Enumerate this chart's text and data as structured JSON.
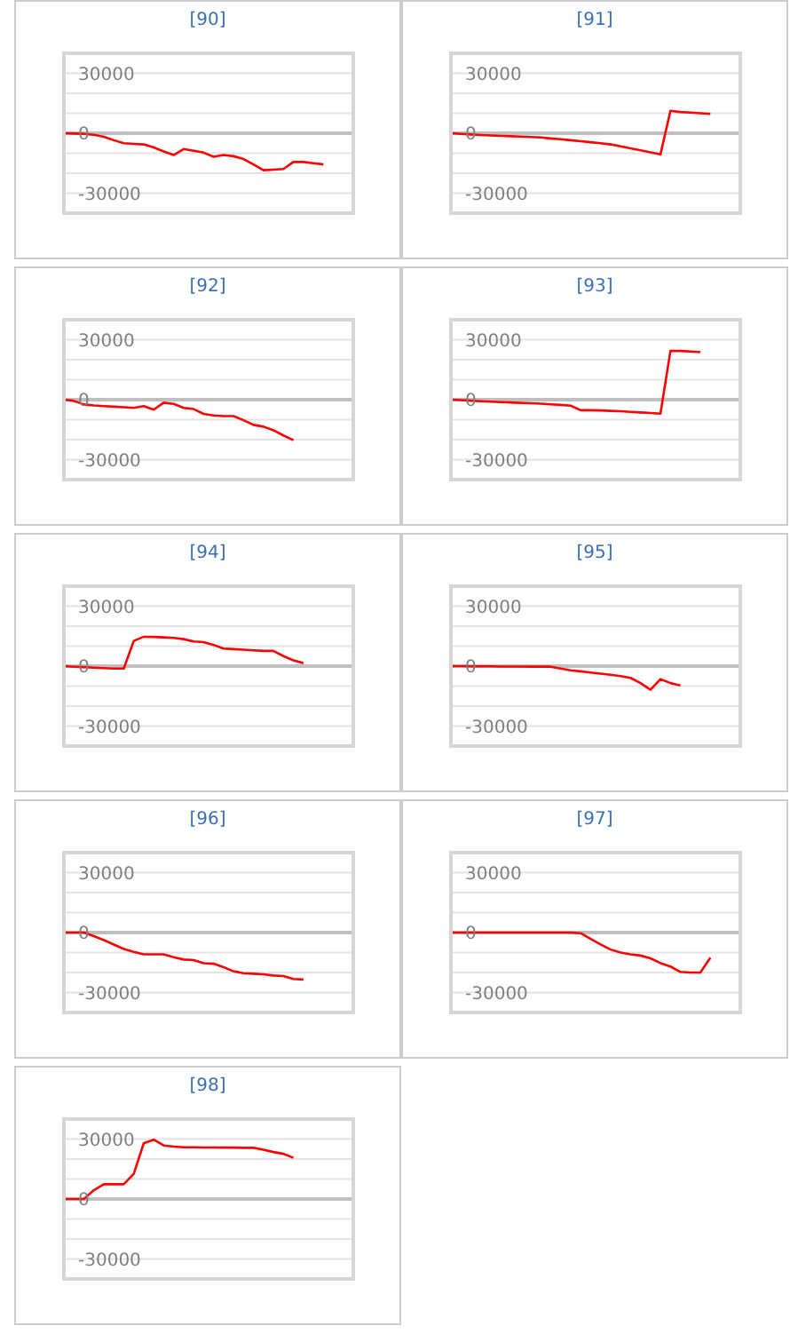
{
  "chart_data": [
    {
      "type": "line",
      "title": "[90]",
      "categories": [
        null,
        null,
        null,
        null,
        null,
        null,
        null,
        null,
        null,
        null,
        null,
        null,
        null,
        null,
        null,
        null,
        null,
        null,
        null,
        null,
        null,
        null,
        null,
        null,
        null,
        null,
        null,
        null,
        null,
        null
      ],
      "series": [
        {
          "color": "#ff0000",
          "values": [
            0,
            -150,
            -300,
            -750,
            -1800,
            -3500,
            -5000,
            -5300,
            -5600,
            -7100,
            -9100,
            -10900,
            -7900,
            -8800,
            -9700,
            -11800,
            -10900,
            -11500,
            -12900,
            -15600,
            -18500,
            -18200,
            -17900,
            -14400,
            -14400,
            -15000,
            -15600,
            null,
            null,
            null
          ]
        }
      ],
      "ylim": [
        -40000,
        40000
      ],
      "yticks": [
        {
          "value": 40000,
          "label": null
        },
        30000,
        {
          "value": 20000,
          "label": null
        },
        {
          "value": 10000,
          "label": null
        },
        0,
        {
          "value": -10000,
          "label": null
        },
        {
          "value": -20000,
          "label": null
        },
        -30000,
        {
          "value": -40000,
          "label": null
        }
      ],
      "grid": "y",
      "marker": "none",
      "tick_labels": "y",
      "ref_lines": [
        {
          "axis": "y",
          "value": 0,
          "color": "#bfbfbf"
        }
      ]
    },
    {
      "type": "line",
      "title": "[91]",
      "categories": [
        null,
        null,
        null,
        null,
        null,
        null,
        null,
        null,
        null,
        null,
        null,
        null,
        null,
        null,
        null,
        null,
        null,
        null,
        null,
        null,
        null,
        null,
        null,
        null,
        null,
        null,
        null,
        null,
        null,
        null
      ],
      "series": [
        {
          "color": "#ff0000",
          "values": [
            0,
            -300,
            -600,
            -900,
            -1100,
            -1300,
            -1500,
            -1700,
            -1900,
            -2100,
            -2600,
            -3000,
            -3500,
            -4000,
            -4500,
            -5000,
            -5600,
            -6600,
            -7600,
            -8600,
            -9600,
            -10600,
            11200,
            10600,
            10300,
            10000,
            9700,
            null,
            null,
            null
          ]
        }
      ],
      "ylim": [
        -40000,
        40000
      ],
      "yticks": [
        {
          "value": 40000,
          "label": null
        },
        30000,
        {
          "value": 20000,
          "label": null
        },
        {
          "value": 10000,
          "label": null
        },
        0,
        {
          "value": -10000,
          "label": null
        },
        {
          "value": -20000,
          "label": null
        },
        -30000,
        {
          "value": -40000,
          "label": null
        }
      ],
      "grid": "y",
      "marker": "none",
      "tick_labels": "y",
      "ref_lines": [
        {
          "axis": "y",
          "value": 0,
          "color": "#bfbfbf"
        }
      ]
    },
    {
      "type": "line",
      "title": "[92]",
      "categories": [
        null,
        null,
        null,
        null,
        null,
        null,
        null,
        null,
        null,
        null,
        null,
        null,
        null,
        null,
        null,
        null,
        null,
        null,
        null,
        null,
        null,
        null,
        null,
        null,
        null,
        null,
        null,
        null,
        null,
        null
      ],
      "series": [
        {
          "color": "#ff0000",
          "values": [
            0,
            -600,
            -2400,
            -2900,
            -3200,
            -3500,
            -3800,
            -4100,
            -3200,
            -5000,
            -1500,
            -2100,
            -4100,
            -4700,
            -7100,
            -7900,
            -8200,
            -8200,
            -10300,
            -12600,
            -13500,
            -15300,
            -17900,
            -20300,
            null,
            null,
            null,
            null,
            null,
            null
          ]
        }
      ],
      "ylim": [
        -40000,
        40000
      ],
      "yticks": [
        {
          "value": 40000,
          "label": null
        },
        30000,
        {
          "value": 20000,
          "label": null
        },
        {
          "value": 10000,
          "label": null
        },
        0,
        {
          "value": -10000,
          "label": null
        },
        {
          "value": -20000,
          "label": null
        },
        -30000,
        {
          "value": -40000,
          "label": null
        }
      ],
      "grid": "y",
      "marker": "none",
      "tick_labels": "y",
      "ref_lines": [
        {
          "axis": "y",
          "value": 0,
          "color": "#bfbfbf"
        }
      ]
    },
    {
      "type": "line",
      "title": "[93]",
      "categories": [
        null,
        null,
        null,
        null,
        null,
        null,
        null,
        null,
        null,
        null,
        null,
        null,
        null,
        null,
        null,
        null,
        null,
        null,
        null,
        null,
        null,
        null,
        null,
        null,
        null,
        null,
        null,
        null,
        null,
        null
      ],
      "series": [
        {
          "color": "#ff0000",
          "values": [
            0,
            -250,
            -500,
            -750,
            -1000,
            -1200,
            -1400,
            -1600,
            -1800,
            -2000,
            -2300,
            -2600,
            -3000,
            -5300,
            -5300,
            -5400,
            -5600,
            -5800,
            -6100,
            -6400,
            -6700,
            -7000,
            24400,
            24400,
            24100,
            23800,
            null,
            null,
            null,
            null
          ]
        }
      ],
      "ylim": [
        -40000,
        40000
      ],
      "yticks": [
        {
          "value": 40000,
          "label": null
        },
        30000,
        {
          "value": 20000,
          "label": null
        },
        {
          "value": 10000,
          "label": null
        },
        0,
        {
          "value": -10000,
          "label": null
        },
        {
          "value": -20000,
          "label": null
        },
        -30000,
        {
          "value": -40000,
          "label": null
        }
      ],
      "grid": "y",
      "marker": "none",
      "tick_labels": "y",
      "ref_lines": [
        {
          "axis": "y",
          "value": 0,
          "color": "#bfbfbf"
        }
      ]
    },
    {
      "type": "line",
      "title": "[94]",
      "categories": [
        null,
        null,
        null,
        null,
        null,
        null,
        null,
        null,
        null,
        null,
        null,
        null,
        null,
        null,
        null,
        null,
        null,
        null,
        null,
        null,
        null,
        null,
        null,
        null,
        null,
        null,
        null,
        null,
        null,
        null
      ],
      "series": [
        {
          "color": "#ff0000",
          "values": [
            0,
            -300,
            -500,
            -800,
            -1000,
            -1200,
            -1200,
            12600,
            14700,
            14600,
            14400,
            14100,
            13500,
            12300,
            12000,
            10600,
            8800,
            8500,
            8200,
            7900,
            7600,
            7600,
            5000,
            2900,
            1500,
            null,
            null,
            null,
            null,
            null
          ]
        }
      ],
      "ylim": [
        -40000,
        40000
      ],
      "yticks": [
        {
          "value": 40000,
          "label": null
        },
        30000,
        {
          "value": 20000,
          "label": null
        },
        {
          "value": 10000,
          "label": null
        },
        0,
        {
          "value": -10000,
          "label": null
        },
        {
          "value": -20000,
          "label": null
        },
        -30000,
        {
          "value": -40000,
          "label": null
        }
      ],
      "grid": "y",
      "marker": "none",
      "tick_labels": "y",
      "ref_lines": [
        {
          "axis": "y",
          "value": 0,
          "color": "#bfbfbf"
        }
      ]
    },
    {
      "type": "line",
      "title": "[95]",
      "categories": [
        null,
        null,
        null,
        null,
        null,
        null,
        null,
        null,
        null,
        null,
        null,
        null,
        null,
        null,
        null,
        null,
        null,
        null,
        null,
        null,
        null,
        null,
        null,
        null,
        null,
        null,
        null,
        null,
        null,
        null
      ],
      "series": [
        {
          "color": "#ff0000",
          "values": [
            0,
            0,
            -100,
            -100,
            -100,
            -200,
            -200,
            -200,
            -300,
            -300,
            -300,
            -1200,
            -2100,
            -2600,
            -3200,
            -3800,
            -4300,
            -5000,
            -5900,
            -8500,
            -11800,
            -6500,
            -8500,
            -9700,
            null,
            null,
            null,
            null,
            null,
            null
          ]
        }
      ],
      "ylim": [
        -40000,
        40000
      ],
      "yticks": [
        {
          "value": 40000,
          "label": null
        },
        30000,
        {
          "value": 20000,
          "label": null
        },
        {
          "value": 10000,
          "label": null
        },
        0,
        {
          "value": -10000,
          "label": null
        },
        {
          "value": -20000,
          "label": null
        },
        -30000,
        {
          "value": -40000,
          "label": null
        }
      ],
      "grid": "y",
      "marker": "none",
      "tick_labels": "y",
      "ref_lines": [
        {
          "axis": "y",
          "value": 0,
          "color": "#bfbfbf"
        }
      ]
    },
    {
      "type": "line",
      "title": "[96]",
      "categories": [
        null,
        null,
        null,
        null,
        null,
        null,
        null,
        null,
        null,
        null,
        null,
        null,
        null,
        null,
        null,
        null,
        null,
        null,
        null,
        null,
        null,
        null,
        null,
        null,
        null,
        null,
        null,
        null,
        null,
        null
      ],
      "series": [
        {
          "color": "#ff0000",
          "values": [
            0,
            0,
            0,
            -1800,
            -3800,
            -6000,
            -8200,
            -9700,
            -10900,
            -10900,
            -10900,
            -12300,
            -13500,
            -13800,
            -15300,
            -15600,
            -17300,
            -19400,
            -20300,
            -20600,
            -20900,
            -21500,
            -21800,
            -23200,
            -23500,
            null,
            null,
            null,
            null,
            null
          ]
        }
      ],
      "ylim": [
        -40000,
        40000
      ],
      "yticks": [
        {
          "value": 40000,
          "label": null
        },
        30000,
        {
          "value": 20000,
          "label": null
        },
        {
          "value": 10000,
          "label": null
        },
        0,
        {
          "value": -10000,
          "label": null
        },
        {
          "value": -20000,
          "label": null
        },
        -30000,
        {
          "value": -40000,
          "label": null
        }
      ],
      "grid": "y",
      "marker": "none",
      "tick_labels": "y",
      "ref_lines": [
        {
          "axis": "y",
          "value": 0,
          "color": "#bfbfbf"
        }
      ]
    },
    {
      "type": "line",
      "title": "[97]",
      "categories": [
        null,
        null,
        null,
        null,
        null,
        null,
        null,
        null,
        null,
        null,
        null,
        null,
        null,
        null,
        null,
        null,
        null,
        null,
        null,
        null,
        null,
        null,
        null,
        null,
        null,
        null,
        null,
        null,
        null,
        null
      ],
      "series": [
        {
          "color": "#ff0000",
          "values": [
            0,
            0,
            0,
            0,
            0,
            0,
            0,
            0,
            0,
            0,
            0,
            0,
            0,
            -300,
            -3200,
            -5900,
            -8500,
            -10000,
            -10900,
            -11500,
            -12900,
            -15300,
            -17000,
            -19700,
            -20000,
            -20000,
            -12600,
            null,
            null,
            null
          ]
        }
      ],
      "ylim": [
        -40000,
        40000
      ],
      "yticks": [
        {
          "value": 40000,
          "label": null
        },
        30000,
        {
          "value": 20000,
          "label": null
        },
        {
          "value": 10000,
          "label": null
        },
        0,
        {
          "value": -10000,
          "label": null
        },
        {
          "value": -20000,
          "label": null
        },
        -30000,
        {
          "value": -40000,
          "label": null
        }
      ],
      "grid": "y",
      "marker": "none",
      "tick_labels": "y",
      "ref_lines": [
        {
          "axis": "y",
          "value": 0,
          "color": "#bfbfbf"
        }
      ]
    },
    {
      "type": "line",
      "title": "[98]",
      "categories": [
        null,
        null,
        null,
        null,
        null,
        null,
        null,
        null,
        null,
        null,
        null,
        null,
        null,
        null,
        null,
        null,
        null,
        null,
        null,
        null,
        null,
        null,
        null,
        null,
        null,
        null,
        null,
        null,
        null,
        null
      ],
      "series": [
        {
          "color": "#ff0000",
          "values": [
            0,
            0,
            0,
            4400,
            7400,
            7400,
            7400,
            12600,
            27900,
            29700,
            26800,
            26200,
            25900,
            25900,
            25800,
            25800,
            25700,
            25700,
            25600,
            25600,
            24700,
            23500,
            22600,
            20600,
            null,
            null,
            null,
            null,
            null,
            null
          ]
        }
      ],
      "ylim": [
        -40000,
        40000
      ],
      "yticks": [
        {
          "value": 40000,
          "label": null
        },
        30000,
        {
          "value": 20000,
          "label": null
        },
        {
          "value": 10000,
          "label": null
        },
        0,
        {
          "value": -10000,
          "label": null
        },
        {
          "value": -20000,
          "label": null
        },
        -30000,
        {
          "value": -40000,
          "label": null
        }
      ],
      "grid": "y",
      "marker": "none",
      "tick_labels": "y",
      "ref_lines": [
        {
          "axis": "y",
          "value": 0,
          "color": "#bfbfbf"
        }
      ]
    }
  ]
}
